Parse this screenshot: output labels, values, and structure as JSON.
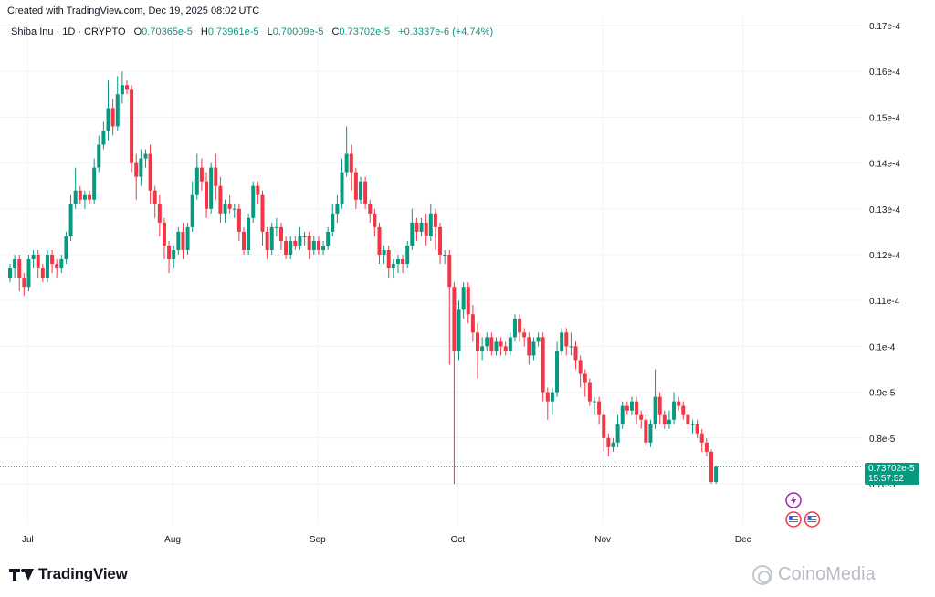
{
  "header": {
    "created": "Created with TradingView.com, Dec 19, 2025 08:02 UTC"
  },
  "legend": {
    "symbol": "Shiba Inu · 1D · CRYPTO",
    "open_label": "O",
    "open": "0.70365e-5",
    "high_label": "H",
    "high": "0.73961e-5",
    "low_label": "L",
    "low": "0.70009e-5",
    "close_label": "C",
    "close": "0.73702e-5",
    "change": "+0.3337e-6 (+4.74%)"
  },
  "price_tag": {
    "price": "0.73702e-5",
    "countdown": "15:57:52"
  },
  "brand": {
    "logo_text": "TradingView"
  },
  "watermark": {
    "text": "CoinoMedia"
  },
  "colors": {
    "up": "#089981",
    "down": "#f23645",
    "grid": "#f0f3fa",
    "event_purple": "#9c27b0",
    "event_red": "#f23645"
  },
  "chart_data": {
    "type": "candlestick",
    "y_unit_note": "values in units of 1e-5",
    "ylim": [
      0.64,
      1.7
    ],
    "y_ticks": [
      {
        "value": 1.7,
        "label": "0.17e-4"
      },
      {
        "value": 1.6,
        "label": "0.16e-4"
      },
      {
        "value": 1.5,
        "label": "0.15e-4"
      },
      {
        "value": 1.4,
        "label": "0.14e-4"
      },
      {
        "value": 1.3,
        "label": "0.13e-4"
      },
      {
        "value": 1.2,
        "label": "0.12e-4"
      },
      {
        "value": 1.1,
        "label": "0.11e-4"
      },
      {
        "value": 1.0,
        "label": "0.1e-4"
      },
      {
        "value": 0.9,
        "label": "0.9e-5"
      },
      {
        "value": 0.8,
        "label": "0.8e-5"
      },
      {
        "value": 0.7,
        "label": "0.7e-5"
      }
    ],
    "x_ticks": [
      {
        "index": 3,
        "label": "Jul"
      },
      {
        "index": 34,
        "label": "Aug"
      },
      {
        "index": 65,
        "label": "Sep"
      },
      {
        "index": 95,
        "label": "Oct"
      },
      {
        "index": 126,
        "label": "Nov"
      },
      {
        "index": 156,
        "label": "Dec"
      }
    ],
    "last_price": 0.737,
    "candles": [
      [
        1.15,
        1.17,
        1.18,
        1.14
      ],
      [
        1.17,
        1.19,
        1.2,
        1.15
      ],
      [
        1.19,
        1.15,
        1.2,
        1.12
      ],
      [
        1.15,
        1.13,
        1.16,
        1.11
      ],
      [
        1.13,
        1.19,
        1.2,
        1.12
      ],
      [
        1.19,
        1.2,
        1.21,
        1.17
      ],
      [
        1.2,
        1.17,
        1.21,
        1.15
      ],
      [
        1.17,
        1.15,
        1.18,
        1.14
      ],
      [
        1.15,
        1.2,
        1.21,
        1.14
      ],
      [
        1.2,
        1.18,
        1.21,
        1.16
      ],
      [
        1.18,
        1.17,
        1.19,
        1.15
      ],
      [
        1.17,
        1.19,
        1.2,
        1.16
      ],
      [
        1.19,
        1.24,
        1.25,
        1.18
      ],
      [
        1.24,
        1.31,
        1.33,
        1.23
      ],
      [
        1.31,
        1.34,
        1.39,
        1.3
      ],
      [
        1.34,
        1.32,
        1.35,
        1.31
      ],
      [
        1.32,
        1.33,
        1.34,
        1.3
      ],
      [
        1.33,
        1.32,
        1.34,
        1.31
      ],
      [
        1.32,
        1.39,
        1.41,
        1.31
      ],
      [
        1.39,
        1.44,
        1.46,
        1.38
      ],
      [
        1.44,
        1.47,
        1.49,
        1.43
      ],
      [
        1.47,
        1.52,
        1.58,
        1.45
      ],
      [
        1.52,
        1.48,
        1.54,
        1.46
      ],
      [
        1.48,
        1.55,
        1.59,
        1.47
      ],
      [
        1.55,
        1.57,
        1.6,
        1.53
      ],
      [
        1.57,
        1.56,
        1.58,
        1.55
      ],
      [
        1.56,
        1.4,
        1.57,
        1.38
      ],
      [
        1.4,
        1.37,
        1.42,
        1.32
      ],
      [
        1.37,
        1.41,
        1.43,
        1.35
      ],
      [
        1.41,
        1.42,
        1.43,
        1.39
      ],
      [
        1.42,
        1.34,
        1.44,
        1.31
      ],
      [
        1.34,
        1.31,
        1.35,
        1.28
      ],
      [
        1.31,
        1.27,
        1.33,
        1.24
      ],
      [
        1.27,
        1.22,
        1.28,
        1.19
      ],
      [
        1.22,
        1.19,
        1.23,
        1.16
      ],
      [
        1.19,
        1.21,
        1.22,
        1.17
      ],
      [
        1.21,
        1.25,
        1.26,
        1.2
      ],
      [
        1.25,
        1.21,
        1.27,
        1.19
      ],
      [
        1.21,
        1.26,
        1.27,
        1.2
      ],
      [
        1.26,
        1.33,
        1.36,
        1.25
      ],
      [
        1.33,
        1.39,
        1.42,
        1.32
      ],
      [
        1.39,
        1.36,
        1.41,
        1.34
      ],
      [
        1.36,
        1.3,
        1.38,
        1.28
      ],
      [
        1.3,
        1.39,
        1.4,
        1.29
      ],
      [
        1.39,
        1.35,
        1.42,
        1.32
      ],
      [
        1.35,
        1.29,
        1.37,
        1.27
      ],
      [
        1.29,
        1.31,
        1.32,
        1.27
      ],
      [
        1.31,
        1.3,
        1.33,
        1.29
      ],
      [
        1.3,
        1.3,
        1.31,
        1.28
      ],
      [
        1.3,
        1.25,
        1.31,
        1.23
      ],
      [
        1.25,
        1.21,
        1.26,
        1.2
      ],
      [
        1.21,
        1.28,
        1.29,
        1.2
      ],
      [
        1.28,
        1.35,
        1.36,
        1.27
      ],
      [
        1.35,
        1.33,
        1.36,
        1.31
      ],
      [
        1.33,
        1.25,
        1.34,
        1.22
      ],
      [
        1.25,
        1.21,
        1.26,
        1.19
      ],
      [
        1.21,
        1.26,
        1.27,
        1.2
      ],
      [
        1.26,
        1.26,
        1.28,
        1.24
      ],
      [
        1.26,
        1.23,
        1.27,
        1.21
      ],
      [
        1.23,
        1.2,
        1.24,
        1.19
      ],
      [
        1.2,
        1.23,
        1.24,
        1.19
      ],
      [
        1.23,
        1.22,
        1.24,
        1.21
      ],
      [
        1.22,
        1.24,
        1.26,
        1.21
      ],
      [
        1.24,
        1.24,
        1.25,
        1.22
      ],
      [
        1.24,
        1.21,
        1.25,
        1.19
      ],
      [
        1.21,
        1.23,
        1.24,
        1.2
      ],
      [
        1.23,
        1.21,
        1.24,
        1.2
      ],
      [
        1.21,
        1.22,
        1.23,
        1.2
      ],
      [
        1.22,
        1.25,
        1.26,
        1.21
      ],
      [
        1.25,
        1.29,
        1.31,
        1.24
      ],
      [
        1.29,
        1.31,
        1.33,
        1.27
      ],
      [
        1.31,
        1.38,
        1.41,
        1.3
      ],
      [
        1.38,
        1.42,
        1.48,
        1.37
      ],
      [
        1.42,
        1.38,
        1.44,
        1.34
      ],
      [
        1.38,
        1.32,
        1.39,
        1.3
      ],
      [
        1.32,
        1.36,
        1.37,
        1.31
      ],
      [
        1.36,
        1.31,
        1.37,
        1.3
      ],
      [
        1.31,
        1.29,
        1.32,
        1.27
      ],
      [
        1.29,
        1.26,
        1.3,
        1.24
      ],
      [
        1.26,
        1.2,
        1.27,
        1.18
      ],
      [
        1.2,
        1.21,
        1.22,
        1.18
      ],
      [
        1.21,
        1.17,
        1.22,
        1.15
      ],
      [
        1.17,
        1.18,
        1.19,
        1.15
      ],
      [
        1.18,
        1.19,
        1.2,
        1.16
      ],
      [
        1.19,
        1.18,
        1.2,
        1.16
      ],
      [
        1.18,
        1.22,
        1.23,
        1.17
      ],
      [
        1.22,
        1.27,
        1.3,
        1.21
      ],
      [
        1.27,
        1.25,
        1.28,
        1.23
      ],
      [
        1.25,
        1.27,
        1.28,
        1.24
      ],
      [
        1.27,
        1.24,
        1.29,
        1.22
      ],
      [
        1.24,
        1.29,
        1.31,
        1.23
      ],
      [
        1.29,
        1.26,
        1.3,
        1.21
      ],
      [
        1.26,
        1.2,
        1.27,
        1.18
      ],
      [
        1.2,
        1.2,
        1.21,
        1.18
      ],
      [
        1.2,
        1.13,
        1.21,
        0.96
      ],
      [
        1.13,
        0.99,
        1.14,
        0.7
      ],
      [
        0.99,
        1.08,
        1.1,
        0.97
      ],
      [
        1.08,
        1.13,
        1.14,
        1.06
      ],
      [
        1.13,
        1.07,
        1.14,
        1.05
      ],
      [
        1.07,
        1.03,
        1.09,
        1.01
      ],
      [
        1.03,
        0.99,
        1.05,
        0.93
      ],
      [
        0.99,
        1.0,
        1.02,
        0.97
      ],
      [
        1.0,
        1.02,
        1.03,
        0.99
      ],
      [
        1.02,
        0.99,
        1.03,
        0.98
      ],
      [
        0.99,
        1.01,
        1.02,
        0.98
      ],
      [
        1.01,
        1.0,
        1.02,
        0.98
      ],
      [
        1.0,
        0.99,
        1.01,
        0.98
      ],
      [
        0.99,
        1.02,
        1.03,
        0.98
      ],
      [
        1.02,
        1.06,
        1.07,
        1.01
      ],
      [
        1.06,
        1.03,
        1.07,
        1.01
      ],
      [
        1.03,
        1.02,
        1.04,
        1.0
      ],
      [
        1.02,
        0.98,
        1.03,
        0.96
      ],
      [
        0.98,
        1.01,
        1.02,
        0.97
      ],
      [
        1.01,
        1.02,
        1.03,
        1.0
      ],
      [
        1.02,
        0.9,
        1.03,
        0.88
      ],
      [
        0.9,
        0.88,
        0.91,
        0.84
      ],
      [
        0.88,
        0.9,
        0.91,
        0.85
      ],
      [
        0.9,
        0.99,
        1.01,
        0.89
      ],
      [
        0.99,
        1.03,
        1.04,
        0.98
      ],
      [
        1.03,
        1.0,
        1.04,
        0.98
      ],
      [
        1.0,
        1.0,
        1.03,
        0.98
      ],
      [
        1.0,
        0.97,
        1.01,
        0.95
      ],
      [
        0.97,
        0.94,
        0.98,
        0.91
      ],
      [
        0.94,
        0.92,
        0.95,
        0.89
      ],
      [
        0.92,
        0.88,
        0.93,
        0.87
      ],
      [
        0.88,
        0.88,
        0.89,
        0.85
      ],
      [
        0.88,
        0.85,
        0.89,
        0.83
      ],
      [
        0.85,
        0.8,
        0.86,
        0.77
      ],
      [
        0.8,
        0.78,
        0.81,
        0.76
      ],
      [
        0.78,
        0.79,
        0.8,
        0.77
      ],
      [
        0.79,
        0.83,
        0.85,
        0.78
      ],
      [
        0.83,
        0.87,
        0.88,
        0.82
      ],
      [
        0.87,
        0.86,
        0.88,
        0.85
      ],
      [
        0.86,
        0.88,
        0.89,
        0.85
      ],
      [
        0.88,
        0.85,
        0.89,
        0.83
      ],
      [
        0.85,
        0.84,
        0.86,
        0.82
      ],
      [
        0.84,
        0.79,
        0.85,
        0.78
      ],
      [
        0.79,
        0.83,
        0.84,
        0.78
      ],
      [
        0.83,
        0.89,
        0.95,
        0.82
      ],
      [
        0.89,
        0.85,
        0.9,
        0.83
      ],
      [
        0.85,
        0.83,
        0.86,
        0.82
      ],
      [
        0.83,
        0.84,
        0.86,
        0.82
      ],
      [
        0.84,
        0.88,
        0.9,
        0.83
      ],
      [
        0.88,
        0.87,
        0.89,
        0.86
      ],
      [
        0.87,
        0.85,
        0.88,
        0.84
      ],
      [
        0.85,
        0.83,
        0.86,
        0.82
      ],
      [
        0.83,
        0.83,
        0.84,
        0.81
      ],
      [
        0.83,
        0.81,
        0.84,
        0.8
      ],
      [
        0.81,
        0.79,
        0.82,
        0.77
      ],
      [
        0.79,
        0.77,
        0.8,
        0.76
      ],
      [
        0.77,
        0.704,
        0.775,
        0.7
      ],
      [
        0.704,
        0.737,
        0.74,
        0.7
      ]
    ],
    "events": [
      {
        "index": 167,
        "kind": "lightning"
      },
      {
        "index": 167,
        "kind": "us-flag"
      },
      {
        "index": 171,
        "kind": "us-flag"
      }
    ]
  }
}
